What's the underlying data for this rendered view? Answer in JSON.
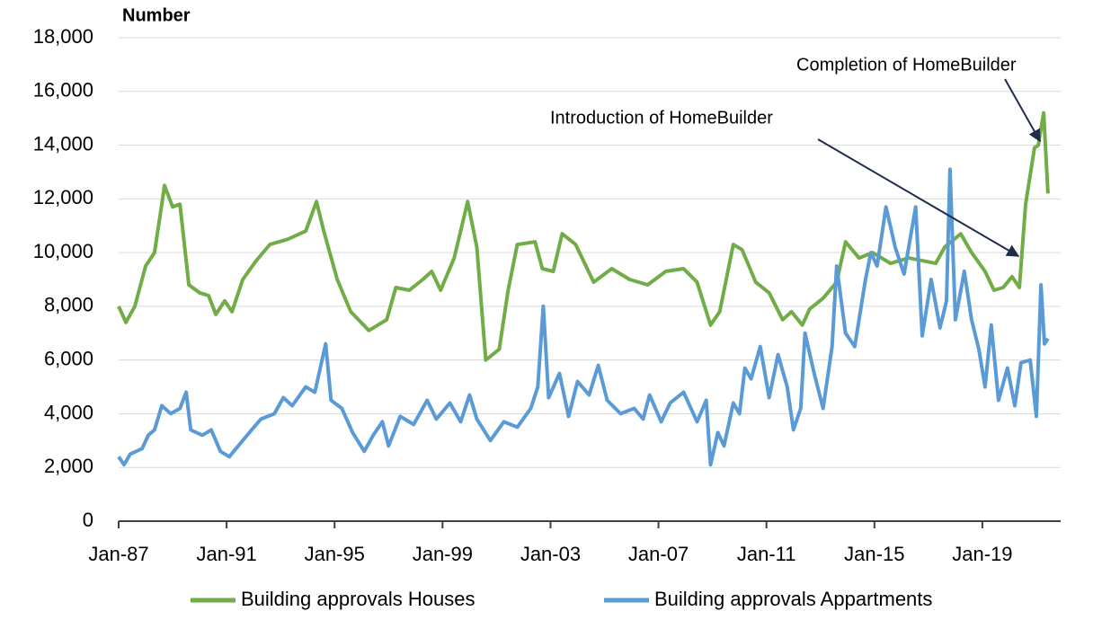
{
  "chart_data": {
    "type": "line",
    "y_label": "Number",
    "annotations": [
      "Introduction of HomeBuilder",
      "Completion of HomeBuilder"
    ],
    "xlim": [
      1987,
      2021.9
    ],
    "xticks": [
      {
        "value": 1987,
        "label": "Jan-87"
      },
      {
        "value": 1991,
        "label": "Jan-91"
      },
      {
        "value": 1995,
        "label": "Jan-95"
      },
      {
        "value": 1999,
        "label": "Jan-99"
      },
      {
        "value": 2003,
        "label": "Jan-03"
      },
      {
        "value": 2007,
        "label": "Jan-07"
      },
      {
        "value": 2011,
        "label": "Jan-11"
      },
      {
        "value": 2015,
        "label": "Jan-15"
      },
      {
        "value": 2019,
        "label": "Jan-19"
      }
    ],
    "ylim": [
      0,
      18000
    ],
    "yticks": [
      0,
      {
        "value": 2000,
        "label": "2,000"
      },
      {
        "value": 4000,
        "label": "4,000"
      },
      {
        "value": 6000,
        "label": "6,000"
      },
      {
        "value": 8000,
        "label": "8,000"
      },
      {
        "value": 10000,
        "label": "10,000"
      },
      {
        "value": 12000,
        "label": "12,000"
      },
      {
        "value": 14000,
        "label": "14,000"
      },
      {
        "value": 16000,
        "label": "16,000"
      },
      {
        "value": 18000,
        "label": "18,000"
      }
    ],
    "grid": true,
    "legend": "bottom",
    "series": [
      {
        "name": "Building approvals Houses",
        "color": "#70ad47",
        "x": [
          1987.0,
          1987.27,
          1987.6,
          1988.0,
          1988.33,
          1988.6,
          1988.7,
          1989.0,
          1989.27,
          1989.6,
          1990.0,
          1990.33,
          1990.6,
          1990.93,
          1991.2,
          1991.6,
          1992.1,
          1992.6,
          1993.27,
          1993.93,
          1994.33,
          1994.6,
          1995.1,
          1995.6,
          1996.27,
          1996.93,
          1997.27,
          1997.77,
          1998.27,
          1998.6,
          1998.93,
          1999.43,
          1999.93,
          2000.27,
          2000.6,
          2001.1,
          2001.43,
          2001.77,
          2002.43,
          2002.7,
          2003.1,
          2003.43,
          2003.93,
          2004.6,
          2005.27,
          2005.93,
          2006.6,
          2007.27,
          2007.93,
          2008.43,
          2008.93,
          2009.27,
          2009.77,
          2010.1,
          2010.6,
          2011.1,
          2011.6,
          2011.93,
          2012.33,
          2012.6,
          2013.1,
          2013.6,
          2013.93,
          2014.43,
          2014.93,
          2015.6,
          2016.27,
          2016.77,
          2017.27,
          2017.6,
          2018.2,
          2018.6,
          2019.1,
          2019.43,
          2019.77,
          2020.1,
          2020.37,
          2020.6,
          2020.93,
          2021.07,
          2021.27,
          2021.43
        ],
        "values": [
          8000,
          7400,
          8000,
          9500,
          10000,
          11800,
          12500,
          11700,
          11800,
          8800,
          8500,
          8400,
          7700,
          8200,
          7800,
          9000,
          9700,
          10300,
          10500,
          10800,
          11900,
          10800,
          9000,
          7800,
          7100,
          7500,
          8700,
          8600,
          9000,
          9300,
          8600,
          9800,
          11900,
          10200,
          6000,
          6400,
          8600,
          10300,
          10400,
          9400,
          9300,
          10700,
          10300,
          8900,
          9400,
          9000,
          8800,
          9300,
          9400,
          8900,
          7300,
          7800,
          10300,
          10100,
          8900,
          8500,
          7500,
          7800,
          7300,
          7900,
          8300,
          8900,
          10400,
          9800,
          10000,
          9600,
          9800,
          9700,
          9600,
          10200,
          10700,
          10000,
          9300,
          8600,
          8700,
          9100,
          8700,
          11800,
          13900,
          14000,
          15200,
          12200
        ]
      },
      {
        "name": "Building approvals Appartments",
        "color": "#5b9bd5",
        "x": [
          1987.0,
          1987.2,
          1987.43,
          1987.87,
          1988.1,
          1988.33,
          1988.6,
          1988.93,
          1989.27,
          1989.5,
          1989.67,
          1990.1,
          1990.43,
          1990.77,
          1991.1,
          1991.43,
          1991.93,
          1992.27,
          1992.77,
          1993.1,
          1993.43,
          1993.93,
          1994.27,
          1994.67,
          1994.87,
          1995.27,
          1995.67,
          1996.1,
          1996.43,
          1996.77,
          1997.0,
          1997.43,
          1997.93,
          1998.43,
          1998.77,
          1999.27,
          1999.67,
          2000.0,
          2000.27,
          2000.77,
          2001.27,
          2001.77,
          2002.27,
          2002.53,
          2002.73,
          2002.93,
          2003.33,
          2003.67,
          2004.0,
          2004.43,
          2004.77,
          2005.1,
          2005.6,
          2006.1,
          2006.43,
          2006.67,
          2007.1,
          2007.43,
          2007.93,
          2008.43,
          2008.77,
          2008.93,
          2009.2,
          2009.43,
          2009.77,
          2010.0,
          2010.2,
          2010.43,
          2010.77,
          2011.1,
          2011.43,
          2011.77,
          2012.0,
          2012.27,
          2012.43,
          2012.77,
          2013.1,
          2013.43,
          2013.6,
          2013.93,
          2014.27,
          2014.67,
          2014.87,
          2015.1,
          2015.43,
          2015.77,
          2016.1,
          2016.53,
          2016.77,
          2017.1,
          2017.43,
          2017.67,
          2017.8,
          2018.0,
          2018.33,
          2018.6,
          2018.87,
          2019.1,
          2019.33,
          2019.6,
          2019.93,
          2020.2,
          2020.43,
          2020.77,
          2021.0,
          2021.17,
          2021.3,
          2021.43
        ],
        "values": [
          2400,
          2100,
          2500,
          2700,
          3200,
          3400,
          4300,
          4000,
          4200,
          4800,
          3400,
          3200,
          3400,
          2600,
          2400,
          2800,
          3400,
          3800,
          4000,
          4600,
          4300,
          5000,
          4800,
          6600,
          4500,
          4200,
          3300,
          2600,
          3200,
          3700,
          2800,
          3900,
          3600,
          4500,
          3800,
          4400,
          3700,
          4700,
          3800,
          3000,
          3700,
          3500,
          4200,
          5000,
          8000,
          4600,
          5500,
          3900,
          5200,
          4700,
          5800,
          4500,
          4000,
          4200,
          3800,
          4700,
          3700,
          4400,
          4800,
          3700,
          4500,
          2100,
          3300,
          2800,
          4400,
          4000,
          5700,
          5300,
          6500,
          4600,
          6200,
          5000,
          3400,
          4200,
          7000,
          5500,
          4200,
          6500,
          9500,
          7000,
          6500,
          9000,
          10000,
          9500,
          11700,
          10200,
          9200,
          11700,
          6900,
          9000,
          7200,
          8200,
          13100,
          7500,
          9300,
          7500,
          6400,
          5000,
          7300,
          4500,
          5700,
          4300,
          5900,
          6000,
          3900,
          8800,
          6600,
          6800
        ]
      }
    ]
  }
}
